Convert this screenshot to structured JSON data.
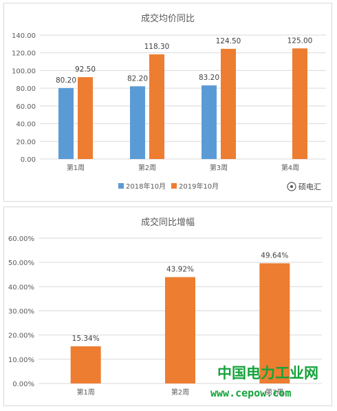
{
  "chart_data": [
    {
      "type": "bar",
      "title": "成交均价同比",
      "categories": [
        "第1周",
        "第2周",
        "第3周",
        "第4周"
      ],
      "y_ticks": [
        "0.00",
        "20.00",
        "40.00",
        "60.00",
        "80.00",
        "100.00",
        "120.00",
        "140.00"
      ],
      "ylim": [
        0,
        140
      ],
      "grid": true,
      "legend_position": "bottom",
      "series": [
        {
          "name": "2018年10月",
          "color": "#5b9bd5",
          "values": [
            80.2,
            82.2,
            83.2,
            null
          ],
          "labels": [
            "80.20",
            "82.20",
            "83.20",
            ""
          ]
        },
        {
          "name": "2019年10月",
          "color": "#ed7d31",
          "values": [
            92.5,
            118.3,
            124.5,
            125.0
          ],
          "labels": [
            "92.50",
            "118.30",
            "124.50",
            "125.00"
          ]
        }
      ]
    },
    {
      "type": "bar",
      "title": "成交同比增幅",
      "categories": [
        "第1周",
        "第2周",
        "第3周"
      ],
      "y_ticks": [
        "0.00%",
        "10.00%",
        "20.00%",
        "30.00%",
        "40.00%",
        "50.00%",
        "60.00%"
      ],
      "ylim": [
        0,
        60
      ],
      "grid": true,
      "series": [
        {
          "color": "#ed7d31",
          "values": [
            15.34,
            43.92,
            49.64
          ],
          "labels": [
            "15.34%",
            "43.92%",
            "49.64%"
          ]
        }
      ]
    }
  ],
  "watermark": {
    "logo_text": "硕电汇",
    "site_name": "中国电力工业网",
    "site_url": "www.cepow.com",
    "color": "#14a33b"
  }
}
